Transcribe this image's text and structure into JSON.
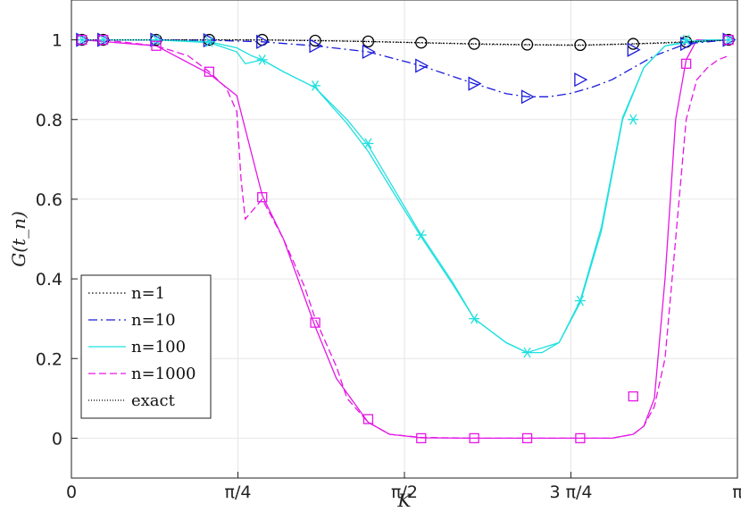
{
  "chart_data": {
    "type": "line",
    "xlabel": "K",
    "ylabel": "G(t_n)",
    "xlim": [
      0,
      3.14159
    ],
    "ylim": [
      -0.1,
      1.1
    ],
    "grid": true,
    "legend_position": "bottom-left",
    "x_ticks": [
      {
        "value": 0,
        "label": "0"
      },
      {
        "value": 0.7854,
        "label": "π/4"
      },
      {
        "value": 1.5708,
        "label": "π/2"
      },
      {
        "value": 2.3562,
        "label": "3 π/4"
      },
      {
        "value": 3.14159,
        "label": "π"
      }
    ],
    "y_ticks": [
      {
        "value": 0,
        "label": "0"
      },
      {
        "value": 0.2,
        "label": "0.2"
      },
      {
        "value": 0.4,
        "label": "0.4"
      },
      {
        "value": 0.6,
        "label": "0.6"
      },
      {
        "value": 0.8,
        "label": "0.8"
      },
      {
        "value": 1,
        "label": "1"
      }
    ],
    "series": [
      {
        "name": "n=1",
        "color": "#000000",
        "dash": "1.5,2.5",
        "marker": "circle",
        "x": [
          0.05,
          0.15,
          0.4,
          0.65,
          0.9,
          1.15,
          1.4,
          1.65,
          1.9,
          2.15,
          2.4,
          2.65,
          2.9,
          3.1
        ],
        "y": [
          1.0,
          1.0,
          1.0,
          1.0,
          1.0,
          0.998,
          0.996,
          0.993,
          0.99,
          0.988,
          0.987,
          0.99,
          0.995,
          1.0
        ],
        "marker_x": [
          0.05,
          0.15,
          0.4,
          0.65,
          0.9,
          1.15,
          1.4,
          1.65,
          1.9,
          2.15,
          2.4,
          2.65,
          2.9,
          3.1
        ],
        "marker_y": [
          1.0,
          1.0,
          1.0,
          1.0,
          1.0,
          0.998,
          0.996,
          0.993,
          0.99,
          0.988,
          0.987,
          0.99,
          0.995,
          1.0
        ]
      },
      {
        "name": "n=10",
        "color": "#1a1adb",
        "dash": "10,4,2,4",
        "marker": "triangle-right",
        "x": [
          0.05,
          0.15,
          0.4,
          0.65,
          0.9,
          1.15,
          1.4,
          1.65,
          1.9,
          2.05,
          2.15,
          2.25,
          2.35,
          2.45,
          2.55,
          2.65,
          2.75,
          2.9,
          3.1
        ],
        "y": [
          1.0,
          1.0,
          1.0,
          0.999,
          0.995,
          0.985,
          0.97,
          0.935,
          0.89,
          0.865,
          0.857,
          0.857,
          0.865,
          0.88,
          0.9,
          0.93,
          0.96,
          0.99,
          1.0
        ],
        "marker_x": [
          0.05,
          0.15,
          0.4,
          0.65,
          0.9,
          1.15,
          1.4,
          1.65,
          1.9,
          2.15,
          2.4,
          2.65,
          2.9,
          3.1
        ],
        "marker_y": [
          1.0,
          1.0,
          1.0,
          0.999,
          0.995,
          0.985,
          0.97,
          0.935,
          0.89,
          0.857,
          0.9,
          0.975,
          0.99,
          1.0
        ]
      },
      {
        "name": "n=100",
        "color": "#22e0e0",
        "dash": "",
        "marker": "asterisk",
        "x": [
          0.05,
          0.15,
          0.4,
          0.65,
          0.78,
          0.85,
          0.9,
          1.0,
          1.15,
          1.3,
          1.4,
          1.55,
          1.65,
          1.8,
          1.9,
          2.05,
          2.15,
          2.22,
          2.3,
          2.4,
          2.5,
          2.6,
          2.7,
          2.8,
          2.9,
          3.0,
          3.1
        ],
        "y": [
          1.0,
          1.0,
          1.0,
          0.995,
          0.98,
          0.96,
          0.95,
          0.92,
          0.88,
          0.8,
          0.735,
          0.6,
          0.51,
          0.39,
          0.3,
          0.24,
          0.215,
          0.215,
          0.24,
          0.34,
          0.52,
          0.8,
          0.93,
          0.985,
          0.995,
          1.0,
          1.0
        ],
        "marker_x": [
          0.05,
          0.15,
          0.4,
          0.65,
          0.9,
          1.15,
          1.4,
          1.65,
          1.9,
          2.15,
          2.4,
          2.65,
          2.9,
          3.1
        ],
        "marker_y": [
          1.0,
          1.0,
          1.0,
          0.995,
          0.95,
          0.885,
          0.74,
          0.51,
          0.3,
          0.215,
          0.345,
          0.8,
          1.0,
          1.0
        ]
      },
      {
        "name": "n=1000",
        "color": "#e617e6",
        "dash": "8,4",
        "marker": "square",
        "x": [
          0.05,
          0.15,
          0.4,
          0.55,
          0.65,
          0.73,
          0.78,
          0.8,
          0.82,
          0.9,
          1.0,
          1.1,
          1.15,
          1.25,
          1.3,
          1.4,
          1.5,
          1.65,
          1.9,
          2.15,
          2.4,
          2.55,
          2.65,
          2.7,
          2.75,
          2.8,
          2.85,
          2.9,
          2.95,
          3.0,
          3.05,
          3.1
        ],
        "y": [
          1.0,
          1.0,
          0.985,
          0.96,
          0.92,
          0.88,
          0.82,
          0.65,
          0.55,
          0.6,
          0.5,
          0.38,
          0.3,
          0.18,
          0.1,
          0.04,
          0.01,
          0.002,
          0.0,
          0.0,
          0.0,
          0.0,
          0.01,
          0.03,
          0.08,
          0.2,
          0.5,
          0.8,
          0.9,
          0.93,
          0.95,
          0.96
        ],
        "marker_x": [
          0.05,
          0.15,
          0.4,
          0.65,
          0.9,
          1.15,
          1.4,
          1.65,
          1.9,
          2.15,
          2.4,
          2.65,
          2.9,
          3.1
        ],
        "marker_y": [
          1.0,
          1.0,
          0.985,
          0.92,
          0.605,
          0.29,
          0.048,
          0.0,
          0.0,
          0.0,
          0.0,
          0.105,
          0.94,
          1.0
        ]
      },
      {
        "name": "exact",
        "color": "#000000",
        "dash": "1,2",
        "marker": "none",
        "x": [
          0.05,
          0.4,
          0.8,
          1.2,
          1.6,
          2.0,
          2.4,
          2.8,
          3.1
        ],
        "y": [
          1.0,
          1.0,
          1.0,
          0.998,
          0.993,
          0.988,
          0.986,
          0.992,
          1.0
        ],
        "marker_x": [],
        "marker_y": []
      }
    ],
    "extra_curves": [
      {
        "of_series": "n=100",
        "color": "#22e0e0",
        "dash": "",
        "x": [
          0.05,
          0.4,
          0.65,
          0.78,
          0.82,
          0.9,
          1.0,
          1.15,
          1.3,
          1.4,
          1.55,
          1.65,
          1.8,
          1.9,
          2.05,
          2.15,
          2.3,
          2.4,
          2.5,
          2.6,
          2.7,
          2.8,
          2.9,
          3.1
        ],
        "y": [
          1.0,
          1.0,
          0.993,
          0.97,
          0.94,
          0.95,
          0.92,
          0.88,
          0.79,
          0.72,
          0.59,
          0.505,
          0.385,
          0.3,
          0.24,
          0.215,
          0.24,
          0.345,
          0.53,
          0.805,
          0.93,
          0.985,
          0.993,
          1.0
        ]
      },
      {
        "of_series": "n=1000",
        "color": "#e617e6",
        "dash": "",
        "x": [
          0.05,
          0.4,
          0.65,
          0.78,
          0.9,
          1.0,
          1.15,
          1.25,
          1.4,
          1.5,
          1.65,
          1.9,
          2.4,
          2.55,
          2.65,
          2.7,
          2.75,
          2.8,
          2.85,
          2.9,
          2.95,
          3.0,
          3.1
        ],
        "y": [
          1.0,
          0.985,
          0.915,
          0.86,
          0.61,
          0.5,
          0.28,
          0.15,
          0.04,
          0.01,
          0.001,
          0.0,
          0.0,
          0.0,
          0.01,
          0.03,
          0.1,
          0.4,
          0.8,
          0.95,
          1.0,
          1.0,
          1.0
        ]
      }
    ]
  }
}
